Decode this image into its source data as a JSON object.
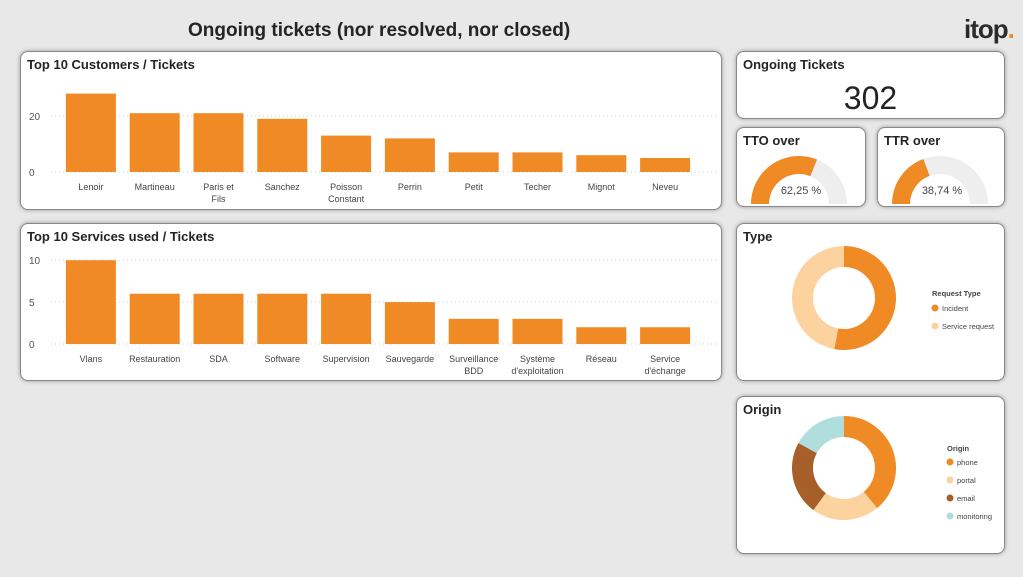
{
  "page": {
    "title": "Ongoing tickets (nor resolved, nor closed)",
    "logo": "itop"
  },
  "kpi": {
    "title": "Ongoing Tickets",
    "value": "302"
  },
  "colors": {
    "accent": "#f08a24",
    "light": "#fcd29f",
    "brown": "#a65f28",
    "teal": "#b0dedd",
    "track": "#eeeeee"
  },
  "chart_data": [
    {
      "type": "bar",
      "title": "Top 10 Customers / Tickets",
      "categories": [
        "Lenoir",
        "Martineau",
        "Paris et Fils",
        "Sanchez",
        "Poisson Constant",
        "Perrin",
        "Petit",
        "Techer",
        "Mignot",
        "Neveu"
      ],
      "values": [
        28,
        21,
        21,
        19,
        13,
        12,
        7,
        7,
        6,
        5
      ],
      "yticks": [
        0,
        20
      ],
      "ylim": [
        0,
        30
      ],
      "grid": true
    },
    {
      "type": "bar",
      "title": "Top 10 Services used / Tickets",
      "categories": [
        "Vlans",
        "Restauration",
        "SDA",
        "Software",
        "Supervision",
        "Sauvegarde",
        "Surveillance BDD",
        "Système d'exploitation",
        "Réseau",
        "Service d'échange"
      ],
      "values": [
        10,
        6,
        6,
        6,
        6,
        5,
        3,
        3,
        2,
        2
      ],
      "yticks": [
        0,
        5,
        10
      ],
      "ylim": [
        0,
        10.5
      ],
      "grid": true
    },
    {
      "type": "gauge",
      "title": "TTO over",
      "value": 62.25,
      "label": "62,25 %"
    },
    {
      "type": "gauge",
      "title": "TTR over",
      "value": 38.74,
      "label": "38,74 %"
    },
    {
      "type": "pie",
      "title": "Type",
      "legend_title": "Request Type",
      "legend": "right",
      "labels": [
        "Incident",
        "Service request"
      ],
      "values": [
        53,
        47
      ]
    },
    {
      "type": "pie",
      "title": "Origin",
      "legend_title": "Origin",
      "legend": "right",
      "labels": [
        "phone",
        "portal",
        "email",
        "monitoring"
      ],
      "values": [
        39,
        21,
        23,
        17
      ]
    }
  ]
}
